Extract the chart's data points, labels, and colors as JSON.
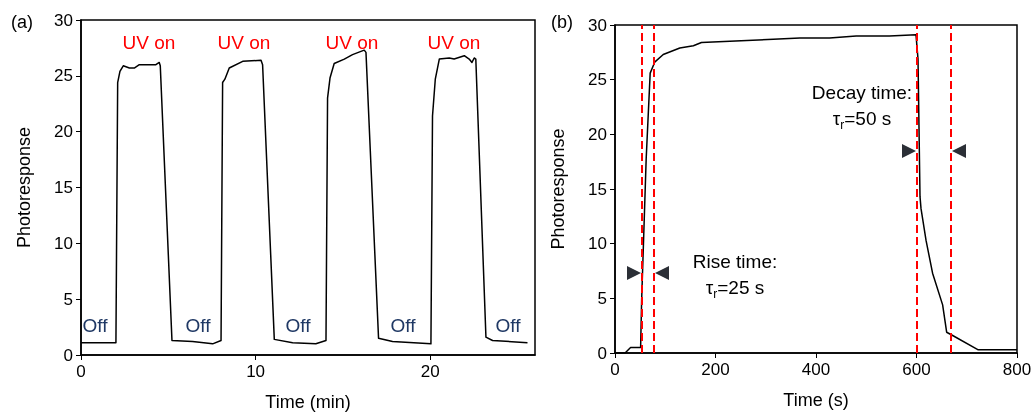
{
  "chart_data": [
    {
      "type": "line",
      "title": "(a)",
      "xlabel": "Time (min)",
      "ylabel": "Photoresponse",
      "xlim": [
        0,
        26
      ],
      "ylim": [
        0,
        30
      ],
      "xticks": [
        0,
        10,
        20
      ],
      "yticks": [
        0,
        5,
        10,
        15,
        20,
        25,
        30
      ],
      "series": [
        {
          "color": "#000000",
          "x": [
            0,
            2.0,
            2.1,
            2.23,
            2.42,
            2.77,
            3.05,
            3.34,
            4.29,
            4.48,
            4.54,
            5.21,
            6.39,
            7.54,
            8.02,
            8.11,
            8.24,
            8.49,
            9.26,
            10.31,
            10.4,
            11.07,
            12.12,
            13.45,
            14.03,
            14.12,
            14.26,
            14.5,
            15.08,
            15.55,
            16.22,
            16.32,
            17.04,
            17.84,
            20.04,
            20.13,
            20.29,
            20.52,
            21.09,
            21.37,
            21.95,
            22.23,
            22.39,
            22.52,
            22.61,
            23.19,
            23.57,
            25.57
          ],
          "values": [
            1.1,
            1.1,
            24.4,
            25.4,
            25.9,
            25.7,
            25.7,
            26.0,
            26.0,
            26.2,
            25.9,
            1.3,
            1.2,
            1.0,
            1.3,
            24.4,
            24.7,
            25.7,
            26.3,
            26.4,
            26.0,
            1.4,
            1.1,
            1.0,
            1.3,
            23.0,
            24.8,
            26.1,
            26.5,
            26.9,
            27.3,
            27.1,
            1.5,
            1.2,
            1.0,
            21.4,
            24.7,
            26.5,
            26.6,
            26.5,
            26.8,
            26.5,
            26.2,
            26.6,
            26.5,
            1.6,
            1.3,
            1.1
          ]
        }
      ],
      "annotations": [
        "UV on",
        "UV on",
        "UV on",
        "UV on",
        "Off",
        "Off",
        "Off",
        "Off",
        "Off"
      ]
    },
    {
      "type": "line",
      "title": "(b)",
      "xlabel": "Time (s)",
      "ylabel": "Photoresponse",
      "xlim": [
        0,
        800
      ],
      "ylim": [
        0,
        30
      ],
      "xticks": [
        0,
        200,
        400,
        600,
        800
      ],
      "yticks": [
        0,
        5,
        10,
        15,
        20,
        25,
        30
      ],
      "series": [
        {
          "color": "#000000",
          "x": [
            0,
            20,
            31,
            51,
            53,
            62,
            70,
            79,
            96,
            129,
            156,
            172,
            315,
            368,
            427,
            480,
            546,
            599,
            603,
            607,
            609,
            619,
            632,
            652,
            660,
            672,
            722,
            800
          ],
          "values": [
            0,
            0,
            0.5,
            0.5,
            4.8,
            17.7,
            25.6,
            26.6,
            27.3,
            27.9,
            28.1,
            28.4,
            28.7,
            28.8,
            28.8,
            29.0,
            29.0,
            29.1,
            26.9,
            14.3,
            13.2,
            10.3,
            7.3,
            4.4,
            1.9,
            1.6,
            0.3,
            0.3
          ]
        }
      ],
      "ref_lines": [
        {
          "axis": "x",
          "value": 53,
          "color": "#ff0000",
          "line_style": "dashed"
        },
        {
          "axis": "x",
          "value": 77,
          "color": "#ff0000",
          "line_style": "dashed"
        },
        {
          "axis": "x",
          "value": 600,
          "color": "#ff0000",
          "line_style": "dashed"
        },
        {
          "axis": "x",
          "value": 668,
          "color": "#ff0000",
          "line_style": "dashed"
        }
      ],
      "annotations": [
        "Rise time:\nτ$_{r}$=25 s",
        "Decay time:\nτ$_{r}$=50 s"
      ]
    }
  ]
}
